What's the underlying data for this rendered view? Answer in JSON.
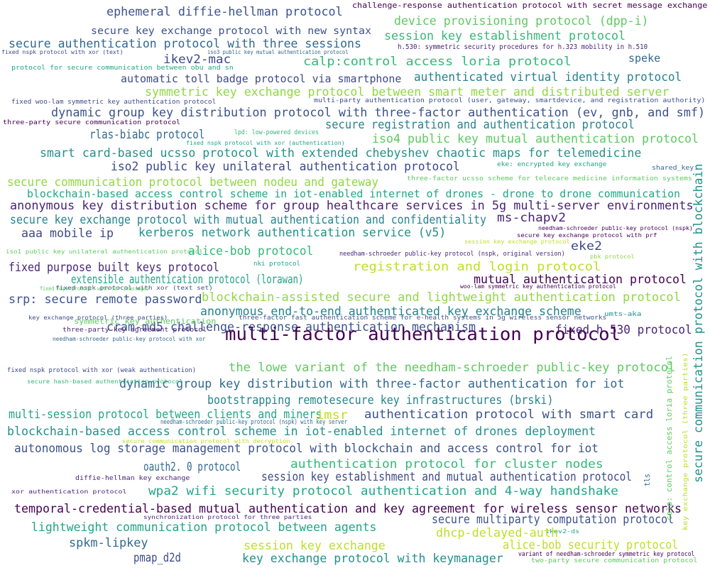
{
  "words": [
    {
      "text": "challenge-response authentication protocol with secret message exchange",
      "color": "#440154"
    },
    {
      "text": "ephemeral diffie-hellman protocol",
      "color": "#3b528b"
    },
    {
      "text": "device provisioning protocol (dpp-i)",
      "color": "#5ec962"
    },
    {
      "text": "secure key exchange protocol with new syntax",
      "color": "#3b528b"
    },
    {
      "text": "session key establishment protocol",
      "color": "#35b779"
    },
    {
      "text": "secure authentication protocol with three sessions",
      "color": "#31688e"
    },
    {
      "text": "h.530: symmetric security procedures for h.323 mobility in h.510",
      "color": "#482475"
    },
    {
      "text": "fixed nspk protocol with xor (text)",
      "color": "#3e4989"
    },
    {
      "text": "iso3 public key mutual authentication protocol",
      "color": "#31688e"
    },
    {
      "text": "ikev2-mac",
      "color": "#3e4989"
    },
    {
      "text": "calp:control access loria protocol",
      "color": "#35b779"
    },
    {
      "text": "speke",
      "color": "#31688e"
    },
    {
      "text": "protocol for secure communication between obu and sn",
      "color": "#21a585"
    },
    {
      "text": "automatic toll badge protocol via smartphone",
      "color": "#3e4989"
    },
    {
      "text": "authenticated virtual identity protocol",
      "color": "#26828e"
    },
    {
      "text": "symmetric key exchange protocol between smart meter and distributed server",
      "color": "#90d743"
    },
    {
      "text": "fixed woo-lam symmetric key authentication protocol",
      "color": "#3e4989"
    },
    {
      "text": "multi-party authentication protocol (user, gateway, smartdevice, and registration authority)",
      "color": "#3b528b"
    },
    {
      "text": "dynamic group key distribution protocol with three-factor authentication (ev, gnb, and smf)",
      "color": "#3b528b"
    },
    {
      "text": "three-party secure communication protocol",
      "color": "#440154"
    },
    {
      "text": "secure registration and authentication protocol",
      "color": "#26828e"
    },
    {
      "text": "rlas-biabc protocol",
      "color": "#31688e"
    },
    {
      "text": "lpd: low-powered devices",
      "color": "#35b779"
    },
    {
      "text": "iso4 public key mutual authentication protocol",
      "color": "#5ec962"
    },
    {
      "text": "fixed nspk protocol with xor (authentication)",
      "color": "#21a585"
    },
    {
      "text": "smart card-based ucsso protocol with extended chebyshev chaotic maps for telemedicine",
      "color": "#21918c"
    },
    {
      "text": "iso2 public key unilateral authentication protocol",
      "color": "#3e4989"
    },
    {
      "text": "eke: encrypted key exchange",
      "color": "#21a585"
    },
    {
      "text": "shared_key",
      "color": "#31688e"
    },
    {
      "text": "secure communication protocol between nodeu and gateway",
      "color": "#90d743"
    },
    {
      "text": "three-factor ucsso scheme for telecare medicine information systems",
      "color": "#5ec962"
    },
    {
      "text": "blockchain-based access control scheme in iot-enabled internet of drones - drone to drone communication",
      "color": "#21a585"
    },
    {
      "text": "anonymous key distribution scheme for group healthcare services in 5g multi-server environments",
      "color": "#482475"
    },
    {
      "text": "secure key exchange protocol with mutual authentication and confidentiality",
      "color": "#26828e"
    },
    {
      "text": "ms-chapv2",
      "color": "#482475"
    },
    {
      "text": "needham-schroeder public-key protocol (nspk)",
      "color": "#440154"
    },
    {
      "text": "secure key exchange protocol with prf",
      "color": "#440154"
    },
    {
      "text": "aaa mobile ip",
      "color": "#3e4989"
    },
    {
      "text": "kerberos network authentication service (v5)",
      "color": "#21918c"
    },
    {
      "text": "session key exchange protocol",
      "color": "#bddf26"
    },
    {
      "text": "eke2",
      "color": "#3e4989"
    },
    {
      "text": "iso1 public key unilateral authentication protocol",
      "color": "#5ec962"
    },
    {
      "text": "alice-bob protocol",
      "color": "#35b779"
    },
    {
      "text": "needham-schroeder public-key protocol (nspk, original version)",
      "color": "#482475"
    },
    {
      "text": "pbk protocol",
      "color": "#90d743"
    },
    {
      "text": "nki protocol",
      "color": "#21a585"
    },
    {
      "text": "fixed purpose built keys protocol",
      "color": "#482475"
    },
    {
      "text": "registration and login protocol",
      "color": "#bddf26"
    },
    {
      "text": "extensible authentication protocol (lorawan)",
      "color": "#21a585"
    },
    {
      "text": "mutual authentication protocol",
      "color": "#440154"
    },
    {
      "text": "fixed nspk protocol with xor (text set)",
      "color": "#3b528b"
    },
    {
      "text": "woo-lam symmetric key authentication protocol",
      "color": "#440154"
    },
    {
      "text": "srp: secure remote password",
      "color": "#3b528b"
    },
    {
      "text": "blockchain-assisted secure and lightweight authentication protocol",
      "color": "#90d743"
    },
    {
      "text": "fixed nspk protocol with xor (message)",
      "color": "#5ec962"
    },
    {
      "text": "anonymous end-to-end authenticated key exchange scheme",
      "color": "#26828e"
    },
    {
      "text": "key exchange protocol (three parties)",
      "color": "#3e4989"
    },
    {
      "text": "umts-aka",
      "color": "#21918c"
    },
    {
      "text": "cram-md5 challenge-response authentication mechanism",
      "color": "#3b528b"
    },
    {
      "text": "fixed h.530 protocol",
      "color": "#482475"
    },
    {
      "text": "three-factor fast authentication scheme for e-health systems in 5g wireless sensor networks",
      "color": "#3b528b"
    },
    {
      "text": "symmetric_key_authentication",
      "color": "#5ec962"
    },
    {
      "text": "multi-factor authentication protocol",
      "color": "#440154"
    },
    {
      "text": "three-party key agreement protocol",
      "color": "#482475"
    },
    {
      "text": "needham-schroeder public-key protocol with xor",
      "color": "#31688e"
    },
    {
      "text": "the lowe variant of the needham-schroeder public-key protocol",
      "color": "#5ec962"
    },
    {
      "text": "fixed nspk protocol with xor (weak authentication)",
      "color": "#3e4989"
    },
    {
      "text": "dynamic group key distribution with three-factor authentication for iot",
      "color": "#31688e"
    },
    {
      "text": "secure hash-based authentication protocol",
      "color": "#35b779"
    },
    {
      "text": "bootstrapping remotesecure key infrastructures (brski)",
      "color": "#26828e"
    },
    {
      "text": "multi-session protocol between clients and miners",
      "color": "#21a585"
    },
    {
      "text": "imsr",
      "color": "#bddf26"
    },
    {
      "text": "authentication protocol with smart card",
      "color": "#3b528b"
    },
    {
      "text": "needham-schroeder public-key protocol (nspk) with key server",
      "color": "#31688e"
    },
    {
      "text": "blockchain-based access control scheme in iot-enabled internet of drones deployment",
      "color": "#21918c"
    },
    {
      "text": "secure communication protocol with decryption",
      "color": "#bddf26"
    },
    {
      "text": "autonomous log storage management protocol with blockchain and access control for iot",
      "color": "#3b528b"
    },
    {
      "text": "oauth2. 0 protocol",
      "color": "#31688e"
    },
    {
      "text": "authentication protocol for cluster nodes",
      "color": "#35b779"
    },
    {
      "text": "diffie-hellman key exchange",
      "color": "#482475"
    },
    {
      "text": "session key establishment and mutual authentication protocol",
      "color": "#3e4989"
    },
    {
      "text": "xor authentication protocol",
      "color": "#482475"
    },
    {
      "text": "wpa2 wifi security protocol authentication and 4-way handshake",
      "color": "#21a585"
    },
    {
      "text": "temporal-credential-based mutual authentication and key agreement for wireless sensor networks",
      "color": "#440154"
    },
    {
      "text": "synchronization protocol for three parties",
      "color": "#482475"
    },
    {
      "text": "secure multiparty computation protocol",
      "color": "#3b528b"
    },
    {
      "text": "ikev2-ds",
      "color": "#21a585"
    },
    {
      "text": "lightweight communication protocol between agents",
      "color": "#21a585"
    },
    {
      "text": "dhcp-delayed-auth",
      "color": "#bddf26"
    },
    {
      "text": "spkm-lipkey",
      "color": "#31688e"
    },
    {
      "text": "session key exchange",
      "color": "#bddf26"
    },
    {
      "text": "alice-bob security protocol",
      "color": "#bddf26"
    },
    {
      "text": "variant of needham-schroeder symmetric key protocol",
      "color": "#440154"
    },
    {
      "text": "pmap_d2d",
      "color": "#3e4989"
    },
    {
      "text": "key exchange protocol with keymanager",
      "color": "#21918c"
    },
    {
      "text": "two-party secure communication protocol",
      "color": "#5ec962"
    },
    {
      "text": "tls",
      "color": "#31688e"
    },
    {
      "text": "calp: control access loria protocol",
      "color": "#5ec962"
    },
    {
      "text": "key exchange protocol (three parties)",
      "color": "#bddf26"
    },
    {
      "text": "secure communication protocol with blockchain",
      "color": "#21918c"
    }
  ]
}
